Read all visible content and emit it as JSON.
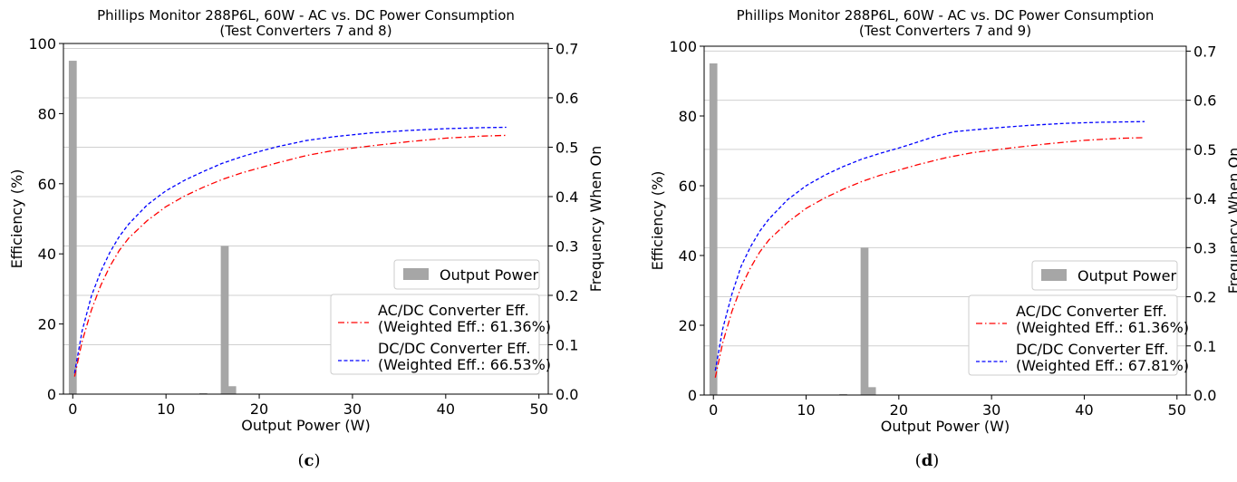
{
  "chart_data": [
    {
      "id": "c",
      "type": "line",
      "title": "Phillips Monitor 288P6L, 60W - AC vs. DC Power Consumption",
      "subtitle": "(Test Converters 7 and 8)",
      "xlabel": "Output Power (W)",
      "ylabel": "Efficiency (%)",
      "y2label": "Frequency When On",
      "xlim": [
        -1,
        51
      ],
      "ylim": [
        0,
        100
      ],
      "y2lim": [
        0,
        0.71
      ],
      "xticks": [
        0,
        10,
        20,
        30,
        40,
        50
      ],
      "yticks": [
        0,
        20,
        40,
        60,
        80,
        100
      ],
      "y2ticks": [
        0.0,
        0.1,
        0.2,
        0.3,
        0.4,
        0.5,
        0.6,
        0.7
      ],
      "ytick_labels": [
        "0",
        "20",
        "40",
        "60",
        "80",
        "100"
      ],
      "y2tick_labels": [
        "0.0",
        "0.1",
        "0.2",
        "0.3",
        "0.4",
        "0.5",
        "0.6",
        "0.7"
      ],
      "xtick_labels": [
        "0",
        "10",
        "20",
        "30",
        "40",
        "50"
      ],
      "grid": "horizontal gridlines on secondary axis",
      "series": [
        {
          "name": "AC/DC Converter Eff.",
          "name2": "(Weighted Eff.: 61.36%)",
          "style": "dashdot",
          "color": "#ff0000",
          "x": [
            0.2,
            1,
            2,
            3,
            4,
            5,
            6,
            8,
            10,
            12,
            14,
            16,
            18,
            20,
            22,
            25,
            28,
            32,
            36,
            40,
            44,
            46.5
          ],
          "y": [
            5,
            15,
            24,
            31,
            36.5,
            41,
            44.5,
            49.5,
            53.5,
            56.5,
            59,
            61.2,
            63,
            64.5,
            66,
            68,
            69.5,
            70.8,
            72,
            73,
            73.6,
            73.8
          ]
        },
        {
          "name": "DC/DC Converter Eff.",
          "name2": "(Weighted Eff.: 66.53%)",
          "style": "dashed",
          "color": "#0000ff",
          "x": [
            0.2,
            1,
            2,
            3,
            4,
            5,
            6,
            8,
            10,
            12,
            14,
            16,
            18,
            20,
            22,
            25,
            28,
            32,
            36,
            40,
            44,
            46.5
          ],
          "y": [
            6,
            18,
            28,
            35,
            40.5,
            45,
            48.5,
            54,
            58,
            61,
            63.5,
            65.8,
            67.6,
            69.2,
            70.6,
            72.3,
            73.4,
            74.5,
            75.2,
            75.7,
            76,
            76.1
          ]
        }
      ],
      "bars": {
        "name": "Output Power",
        "color": "#a6a6a6",
        "x": [
          0,
          14,
          16.3,
          17.1
        ],
        "heights": [
          0.675,
          0.002,
          0.3,
          0.016
        ]
      },
      "legend_bar": "Output Power",
      "legend_placement": "center-right / lower-right",
      "caption": "c"
    },
    {
      "id": "d",
      "type": "line",
      "title": "Phillips Monitor 288P6L, 60W - AC vs. DC Power Consumption",
      "subtitle": "(Test Converters 7 and 9)",
      "xlabel": "Output Power (W)",
      "ylabel": "Efficiency (%)",
      "y2label": "Frequency When On",
      "xlim": [
        -1,
        51
      ],
      "ylim": [
        0,
        100
      ],
      "y2lim": [
        0,
        0.71
      ],
      "xticks": [
        0,
        10,
        20,
        30,
        40,
        50
      ],
      "yticks": [
        0,
        20,
        40,
        60,
        80,
        100
      ],
      "y2ticks": [
        0.0,
        0.1,
        0.2,
        0.3,
        0.4,
        0.5,
        0.6,
        0.7
      ],
      "ytick_labels": [
        "0",
        "20",
        "40",
        "60",
        "80",
        "100"
      ],
      "y2tick_labels": [
        "0.0",
        "0.1",
        "0.2",
        "0.3",
        "0.4",
        "0.5",
        "0.6",
        "0.7"
      ],
      "xtick_labels": [
        "0",
        "10",
        "20",
        "30",
        "40",
        "50"
      ],
      "grid": "horizontal gridlines on secondary axis",
      "series": [
        {
          "name": "AC/DC Converter Eff.",
          "name2": "(Weighted Eff.: 61.36%)",
          "style": "dashdot",
          "color": "#ff0000",
          "x": [
            0.2,
            1,
            2,
            3,
            4,
            5,
            6,
            8,
            10,
            12,
            14,
            16,
            18,
            20,
            22,
            25,
            28,
            32,
            36,
            40,
            44,
            46.5
          ],
          "y": [
            5,
            15,
            24,
            31,
            36.5,
            41,
            44.5,
            49.5,
            53.5,
            56.5,
            59,
            61.2,
            63,
            64.5,
            66,
            68,
            69.5,
            70.8,
            72,
            73,
            73.6,
            73.8
          ]
        },
        {
          "name": "DC/DC Converter Eff.",
          "name2": "(Weighted Eff.: 67.81%)",
          "style": "dashed",
          "color": "#0000ff",
          "x": [
            0.2,
            1,
            2,
            3,
            4,
            5,
            6,
            8,
            10,
            12,
            14,
            16,
            18,
            20,
            22,
            24,
            26,
            30,
            34,
            38,
            42,
            46.5
          ],
          "y": [
            7,
            19,
            29,
            37,
            42.5,
            47,
            50.5,
            56,
            60,
            63,
            65.5,
            67.6,
            69.3,
            70.8,
            72.5,
            74.2,
            75.5,
            76.5,
            77.3,
            77.9,
            78.2,
            78.4
          ]
        }
      ],
      "bars": {
        "name": "Output Power",
        "color": "#a6a6a6",
        "x": [
          0,
          14,
          16.3,
          17.1
        ],
        "heights": [
          0.675,
          0.002,
          0.3,
          0.016
        ]
      },
      "legend_bar": "Output Power",
      "legend_placement": "center-right / lower-right",
      "caption": "d"
    }
  ]
}
